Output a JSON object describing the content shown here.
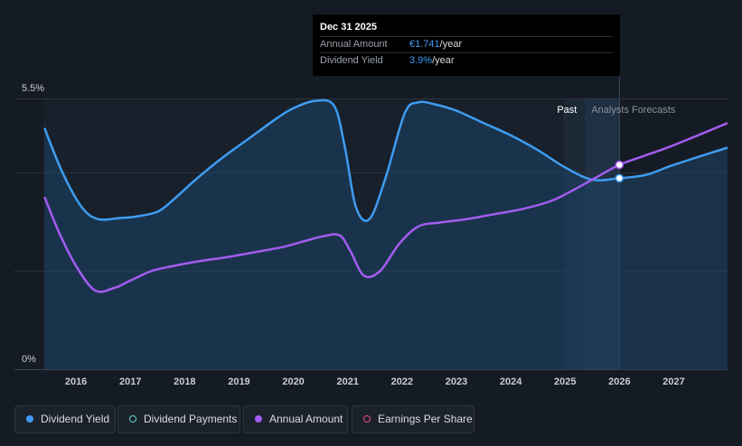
{
  "tooltip": {
    "date": "Dec 31 2025",
    "amount_label": "Annual Amount",
    "amount_value": "€1.741",
    "amount_unit": "/year",
    "yield_label": "Dividend Yield",
    "yield_value": "3.9%",
    "yield_unit": "/year"
  },
  "legend": [
    {
      "label": "Dividend Yield",
      "color": "#3e9cf0",
      "filled": true
    },
    {
      "label": "Dividend Payments",
      "color": "#5fd6c5",
      "filled": false
    },
    {
      "label": "Annual Amount",
      "color": "#a35cf0",
      "filled": true
    },
    {
      "label": "Earnings Per Share",
      "color": "#e8478f",
      "filled": false
    }
  ],
  "chart_data": {
    "type": "line",
    "y_tick_labels": [
      "5.5%",
      "0%"
    ],
    "ylim": [
      0,
      5.5
    ],
    "xlim": [
      2015.4,
      2027.99
    ],
    "x_ticks": [
      2016,
      2017,
      2018,
      2019,
      2020,
      2021,
      2022,
      2023,
      2024,
      2025,
      2026,
      2027
    ],
    "regions": {
      "past_label": "Past",
      "forecast_label": "Analysts Forecasts",
      "divider_x": 2026.0
    },
    "grid": true,
    "series": [
      {
        "name": "Dividend Yield",
        "color": "#3e9cf0",
        "area": true,
        "x": [
          2015.42,
          2015.75,
          2016.1,
          2016.4,
          2016.8,
          2017.1,
          2017.5,
          2017.8,
          2018.2,
          2018.7,
          2019.2,
          2019.7,
          2020.0,
          2020.4,
          2020.75,
          2020.95,
          2021.15,
          2021.4,
          2021.7,
          2022.05,
          2022.3,
          2022.6,
          2023.0,
          2023.5,
          2024.0,
          2024.5,
          2025.0,
          2025.5,
          2026.0,
          2026.5,
          2027.0,
          2027.99
        ],
        "y": [
          4.9,
          4.0,
          3.3,
          3.05,
          3.07,
          3.1,
          3.2,
          3.45,
          3.85,
          4.3,
          4.7,
          5.1,
          5.3,
          5.45,
          5.35,
          4.5,
          3.3,
          3.05,
          3.9,
          5.2,
          5.42,
          5.38,
          5.25,
          5.0,
          4.75,
          4.45,
          4.1,
          3.85,
          3.88,
          3.95,
          4.15,
          4.5
        ]
      },
      {
        "name": "Annual Amount",
        "color": "#a35cf0",
        "area": false,
        "x": [
          2015.42,
          2015.7,
          2016.0,
          2016.35,
          2016.7,
          2017.0,
          2017.4,
          2017.8,
          2018.3,
          2018.8,
          2019.3,
          2019.8,
          2020.2,
          2020.55,
          2020.85,
          2021.05,
          2021.3,
          2021.6,
          2021.95,
          2022.3,
          2022.7,
          2023.2,
          2023.7,
          2024.2,
          2024.7,
          2025.0,
          2025.5,
          2026.0,
          2026.5,
          2027.0,
          2027.99
        ],
        "y": [
          3.5,
          2.75,
          2.1,
          1.6,
          1.65,
          1.8,
          2.0,
          2.1,
          2.2,
          2.28,
          2.38,
          2.48,
          2.6,
          2.7,
          2.72,
          2.4,
          1.9,
          2.0,
          2.55,
          2.9,
          2.98,
          3.05,
          3.15,
          3.25,
          3.4,
          3.55,
          3.85,
          4.15,
          4.35,
          4.55,
          5.0
        ]
      }
    ],
    "highlight_points": [
      {
        "series": "Annual Amount",
        "x": 2026.0,
        "y": 4.15
      },
      {
        "series": "Dividend Yield",
        "x": 2026.0,
        "y": 3.88
      }
    ]
  }
}
